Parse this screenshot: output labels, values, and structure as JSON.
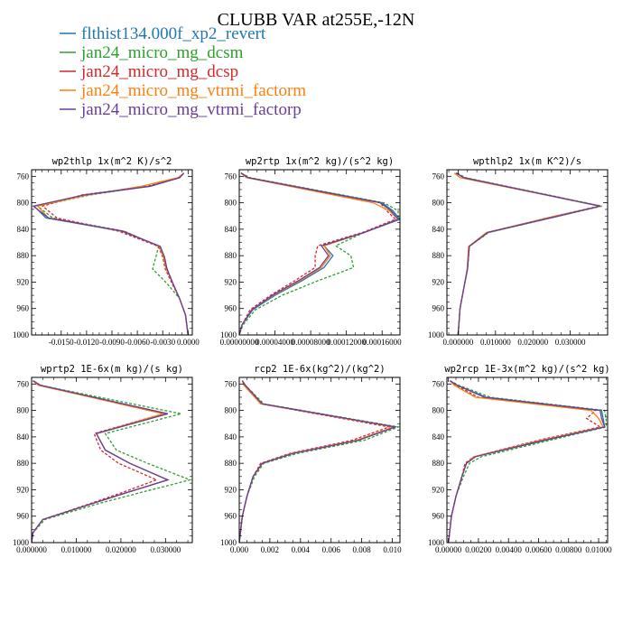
{
  "figure": {
    "title": "CLUBB VAR at255E,-12N",
    "legend": [
      {
        "name": "flthist134.000f_xp2_revert",
        "color": "#1f77b4",
        "dash": false
      },
      {
        "name": "jan24_micro_mg_dcsm",
        "color": "#2ca02c",
        "dash": true
      },
      {
        "name": "jan24_micro_mg_dcsp",
        "color": "#d62728",
        "dash": true
      },
      {
        "name": "jan24_micro_mg_vtrmi_factorm",
        "color": "#ff7f0e",
        "dash": false
      },
      {
        "name": "jan24_micro_mg_vtrmi_factorp",
        "color": "#6a3d9a",
        "dash": false
      }
    ]
  },
  "chart_data": [
    {
      "type": "line",
      "title": "wp2thlp  1x(m^2 K)/s^2",
      "ylim": [
        1000,
        750
      ],
      "yticks": [
        760,
        800,
        840,
        880,
        920,
        960,
        1000
      ],
      "xlim": [
        -0.0185,
        0.0005
      ],
      "xticks": [
        -0.015,
        -0.012,
        -0.009,
        -0.006,
        -0.003,
        0.0
      ],
      "xtick_labels": [
        "-0.0150",
        "-0.0120",
        "-0.0090",
        "-0.0060",
        "-0.0030",
        "0.0000"
      ],
      "y": [
        755,
        762,
        775,
        788,
        805,
        823,
        843,
        866,
        882,
        900,
        922,
        945,
        970,
        1000
      ],
      "series": [
        {
          "name": "flthist134.000f_xp2_revert",
          "values": [
            -0.0005,
            -0.001,
            -0.0045,
            -0.012,
            -0.0182,
            -0.0168,
            -0.0078,
            -0.0033,
            -0.0028,
            -0.0025,
            -0.0018,
            -0.001,
            -0.0003,
            0
          ]
        },
        {
          "name": "jan24_micro_mg_dcsm",
          "values": [
            -0.0005,
            -0.001,
            -0.0048,
            -0.0115,
            -0.0178,
            -0.016,
            -0.0075,
            -0.0035,
            -0.0038,
            -0.0042,
            -0.0025,
            -0.001,
            -0.0003,
            0
          ]
        },
        {
          "name": "jan24_micro_mg_dcsp",
          "values": [
            -0.0005,
            -0.001,
            -0.0047,
            -0.0125,
            -0.0172,
            -0.0155,
            -0.0082,
            -0.0035,
            -0.003,
            -0.0027,
            -0.0019,
            -0.001,
            -0.0003,
            0
          ]
        },
        {
          "name": "jan24_micro_mg_vtrmi_factorm",
          "values": [
            -0.0005,
            -0.0012,
            -0.0055,
            -0.0118,
            -0.0178,
            -0.0165,
            -0.0076,
            -0.0034,
            -0.0029,
            -0.0026,
            -0.0018,
            -0.001,
            -0.0003,
            0
          ]
        },
        {
          "name": "jan24_micro_mg_vtrmi_factorp",
          "values": [
            -0.0005,
            -0.001,
            -0.0045,
            -0.0122,
            -0.0183,
            -0.0165,
            -0.0077,
            -0.0033,
            -0.0028,
            -0.0025,
            -0.0018,
            -0.001,
            -0.0003,
            0
          ]
        }
      ]
    },
    {
      "type": "line",
      "title": "wp2rtp  1x(m^2 kg)/(s^2 kg)",
      "ylim": [
        1000,
        750
      ],
      "yticks": [
        760,
        800,
        840,
        880,
        920,
        960,
        1000
      ],
      "xlim": [
        0,
        0.00018
      ],
      "xticks": [
        0,
        4e-05,
        8e-05,
        0.00012,
        0.00016
      ],
      "xtick_labels": [
        "0.00000000",
        "0.00004000",
        "0.00008000",
        "0.00012000",
        "0.00016000"
      ],
      "y": [
        755,
        762,
        800,
        812,
        825,
        845,
        865,
        880,
        898,
        918,
        940,
        962,
        985,
        1000
      ],
      "series": [
        {
          "name": "flthist134.000f_xp2_revert",
          "values": [
            2e-06,
            1e-05,
            0.00016,
            0.000172,
            0.00018,
            0.00014,
            9.5e-05,
            0.000105,
            9.5e-05,
            7e-05,
            4e-05,
            1.5e-05,
            3e-06,
            0
          ]
        },
        {
          "name": "jan24_micro_mg_dcsm",
          "values": [
            2e-06,
            1.2e-05,
            0.000162,
            0.000178,
            0.000178,
            0.00014,
            0.000108,
            0.000125,
            0.000128,
            8.8e-05,
            4.8e-05,
            1.8e-05,
            4e-06,
            0
          ]
        },
        {
          "name": "jan24_micro_mg_dcsp",
          "values": [
            2e-06,
            1e-05,
            0.000158,
            0.000165,
            0.000175,
            0.000138,
            8.8e-05,
            8.5e-05,
            8.5e-05,
            6.2e-05,
            3.5e-05,
            1.2e-05,
            3e-06,
            0
          ]
        },
        {
          "name": "jan24_micro_mg_vtrmi_factorm",
          "values": [
            2e-06,
            8e-06,
            0.00015,
            0.000168,
            0.000178,
            0.00014,
            9.5e-05,
            0.000102,
            9.2e-05,
            6.8e-05,
            3.8e-05,
            1.4e-05,
            3e-06,
            0
          ]
        },
        {
          "name": "jan24_micro_mg_vtrmi_factorp",
          "values": [
            2e-06,
            1e-05,
            0.000158,
            0.00017,
            0.000178,
            0.00014,
            9.2e-05,
            0.0001,
            9e-05,
            6.6e-05,
            3.7e-05,
            1.4e-05,
            3e-06,
            0
          ]
        }
      ]
    },
    {
      "type": "line",
      "title": "wpthlp2  1x(m K^2)/s",
      "ylim": [
        1000,
        750
      ],
      "yticks": [
        760,
        800,
        840,
        880,
        920,
        960,
        1000
      ],
      "xlim": [
        -0.003,
        0.04
      ],
      "xticks": [
        0,
        0.01,
        0.02,
        0.03
      ],
      "xtick_labels": [
        "0.000000",
        "0.010000",
        "0.020000",
        "0.030000"
      ],
      "y": [
        755,
        762,
        805,
        820,
        845,
        866,
        900,
        930,
        960,
        1000
      ],
      "series": [
        {
          "name": "flthist134.000f_xp2_revert",
          "values": [
            -0.0005,
            0.0015,
            0.038,
            0.027,
            0.008,
            0.003,
            0.0025,
            0.0015,
            0.0005,
            0
          ]
        },
        {
          "name": "jan24_micro_mg_dcsm",
          "values": [
            -0.0003,
            0.002,
            0.0385,
            0.027,
            0.0082,
            0.003,
            0.0025,
            0.0015,
            0.0005,
            0
          ]
        },
        {
          "name": "jan24_micro_mg_dcsp",
          "values": [
            -0.0006,
            0.0015,
            0.0378,
            0.026,
            0.0078,
            0.003,
            0.0025,
            0.0015,
            0.0005,
            0
          ]
        },
        {
          "name": "jan24_micro_mg_vtrmi_factorm",
          "values": [
            -0.001,
            0.0005,
            0.0382,
            0.026,
            0.0076,
            0.0028,
            0.0024,
            0.0015,
            0.0005,
            0
          ]
        },
        {
          "name": "jan24_micro_mg_vtrmi_factorp",
          "values": [
            -0.0005,
            0.0015,
            0.038,
            0.0268,
            0.0079,
            0.003,
            0.0025,
            0.0015,
            0.0005,
            0
          ]
        }
      ]
    },
    {
      "type": "line",
      "title": "wprtp2  1E-6x(m kg)/(s kg)",
      "ylim": [
        1000,
        750
      ],
      "yticks": [
        760,
        800,
        840,
        880,
        920,
        960,
        1000
      ],
      "xlim": [
        0,
        0.036
      ],
      "xticks": [
        0,
        0.01,
        0.02,
        0.03
      ],
      "xtick_labels": [
        "0.000000",
        "0.010000",
        "0.020000",
        "0.030000"
      ],
      "y": [
        755,
        762,
        805,
        835,
        860,
        880,
        905,
        925,
        940,
        965,
        985,
        1000
      ],
      "series": [
        {
          "name": "flthist134.000f_xp2_revert",
          "values": [
            0.0003,
            0.002,
            0.0305,
            0.0145,
            0.0165,
            0.022,
            0.0305,
            0.021,
            0.014,
            0.0025,
            0.0003,
            0
          ]
        },
        {
          "name": "jan24_micro_mg_dcsm",
          "values": [
            0.0003,
            0.002,
            0.0335,
            0.0165,
            0.019,
            0.026,
            0.0355,
            0.024,
            0.0155,
            0.003,
            0.0003,
            0
          ]
        },
        {
          "name": "jan24_micro_mg_dcsp",
          "values": [
            0.0003,
            0.0018,
            0.0295,
            0.014,
            0.0155,
            0.0195,
            0.028,
            0.02,
            0.0135,
            0.0025,
            0.0003,
            0
          ]
        },
        {
          "name": "jan24_micro_mg_vtrmi_factorm",
          "values": [
            0.0003,
            0.0015,
            0.0295,
            0.0145,
            0.0165,
            0.022,
            0.0305,
            0.021,
            0.014,
            0.0025,
            0.0003,
            0
          ]
        },
        {
          "name": "jan24_micro_mg_vtrmi_factorp",
          "values": [
            0.0003,
            0.002,
            0.0305,
            0.0145,
            0.0165,
            0.022,
            0.0305,
            0.021,
            0.014,
            0.0025,
            0.0003,
            0
          ]
        }
      ]
    },
    {
      "type": "line",
      "title": "rcp2  1E-6x(kg^2)/(kg^2)",
      "ylim": [
        1000,
        750
      ],
      "yticks": [
        760,
        800,
        840,
        880,
        920,
        960,
        1000
      ],
      "xlim": [
        0,
        0.0105
      ],
      "xticks": [
        0,
        0.002,
        0.004,
        0.006,
        0.008,
        0.01
      ],
      "xtick_labels": [
        "0.000",
        "0.002",
        "0.004",
        "0.006",
        "0.008",
        "0.010"
      ],
      "y": [
        755,
        762,
        790,
        825,
        845,
        865,
        880,
        900,
        930,
        960,
        1000
      ],
      "series": [
        {
          "name": "flthist134.000f_xp2_revert",
          "values": [
            0.0002,
            0.0004,
            0.0015,
            0.0102,
            0.0078,
            0.0035,
            0.0015,
            0.0009,
            0.0005,
            0.0002,
            0
          ]
        },
        {
          "name": "jan24_micro_mg_dcsm",
          "values": [
            0.0002,
            0.0004,
            0.0016,
            0.0104,
            0.0082,
            0.0038,
            0.0016,
            0.001,
            0.0005,
            0.0002,
            0
          ]
        },
        {
          "name": "jan24_micro_mg_dcsp",
          "values": [
            0.0002,
            0.0004,
            0.0014,
            0.0098,
            0.0074,
            0.0033,
            0.0014,
            0.0009,
            0.0005,
            0.0002,
            0
          ]
        },
        {
          "name": "jan24_micro_mg_vtrmi_factorm",
          "values": [
            0.0002,
            0.0003,
            0.0014,
            0.0101,
            0.0077,
            0.0034,
            0.0015,
            0.0009,
            0.0005,
            0.0002,
            0
          ]
        },
        {
          "name": "jan24_micro_mg_vtrmi_factorp",
          "values": [
            0.0002,
            0.0004,
            0.0015,
            0.0102,
            0.0078,
            0.0035,
            0.0015,
            0.0009,
            0.0005,
            0.0002,
            0
          ]
        }
      ]
    },
    {
      "type": "line",
      "title": "wp2rcp  1E-3x(m^2 kg)/(s^2 kg)",
      "ylim": [
        1000,
        750
      ],
      "yticks": [
        760,
        800,
        840,
        880,
        920,
        960,
        1000
      ],
      "xlim": [
        -0.0001,
        0.0106
      ],
      "xticks": [
        0,
        0.002,
        0.004,
        0.006,
        0.008,
        0.01
      ],
      "xtick_labels": [
        "0.00000",
        "0.00200",
        "0.00400",
        "0.00600",
        "0.00800",
        "0.01000"
      ],
      "y": [
        755,
        762,
        780,
        800,
        812,
        825,
        845,
        870,
        880,
        900,
        930,
        960,
        1000
      ],
      "series": [
        {
          "name": "flthist134.000f_xp2_revert",
          "values": [
            0.0001,
            0.0006,
            0.0025,
            0.0102,
            0.0103,
            0.0104,
            0.0065,
            0.0018,
            0.0012,
            0.0009,
            0.0005,
            0.0002,
            0
          ]
        },
        {
          "name": "jan24_micro_mg_dcsm",
          "values": [
            0.0001,
            0.0007,
            0.0028,
            0.0104,
            0.0105,
            0.0105,
            0.0068,
            0.0022,
            0.0014,
            0.001,
            0.0005,
            0.0002,
            0
          ]
        },
        {
          "name": "jan24_micro_mg_dcsp",
          "values": [
            0.0001,
            0.0005,
            0.002,
            0.0098,
            0.0092,
            0.0101,
            0.006,
            0.0017,
            0.0011,
            0.0009,
            0.0005,
            0.0002,
            0
          ]
        },
        {
          "name": "jan24_micro_mg_vtrmi_factorm",
          "values": [
            0.0001,
            0.0004,
            0.0018,
            0.0095,
            0.01,
            0.0103,
            0.0062,
            0.0017,
            0.0012,
            0.0009,
            0.0005,
            0.0002,
            0
          ]
        },
        {
          "name": "jan24_micro_mg_vtrmi_factorp",
          "values": [
            0.0001,
            0.0006,
            0.0024,
            0.0101,
            0.0102,
            0.0104,
            0.0064,
            0.0018,
            0.0012,
            0.0009,
            0.0005,
            0.0002,
            0
          ]
        }
      ]
    }
  ]
}
